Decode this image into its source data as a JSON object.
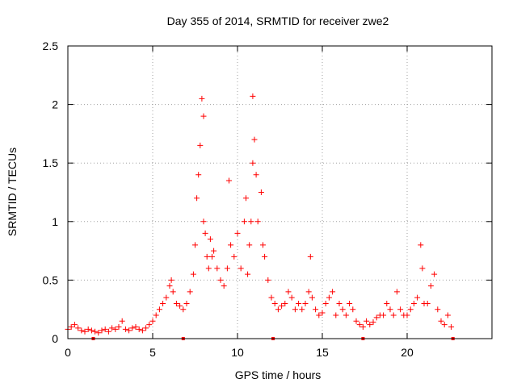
{
  "chart_data": {
    "type": "scatter",
    "title": "Day 355 of 2014, SRMTID for receiver zwe2",
    "xlabel": "GPS time / hours",
    "ylabel": "SRMTID / TECUs",
    "xlim": [
      0,
      25
    ],
    "ylim": [
      0,
      2.5
    ],
    "xticks": [
      0,
      5,
      10,
      15,
      20
    ],
    "yticks": [
      0,
      0.5,
      1,
      1.5,
      2,
      2.5
    ],
    "ytick_labels": [
      "0",
      "0.5",
      "1",
      "1.5",
      "2",
      "2.5"
    ],
    "grid": true,
    "marker": "+",
    "color": "#ff0000",
    "gap_markers_x": [
      1.5,
      6.8,
      12.1,
      17.4,
      22.7
    ],
    "series": [
      {
        "name": "zwe2",
        "x": [
          0.0,
          0.2,
          0.4,
          0.6,
          0.8,
          1.0,
          1.2,
          1.4,
          1.6,
          1.8,
          2.0,
          2.2,
          2.4,
          2.6,
          2.8,
          3.0,
          3.2,
          3.4,
          3.6,
          3.8,
          4.0,
          4.2,
          4.4,
          4.6,
          4.8,
          5.0,
          5.2,
          5.4,
          5.6,
          5.8,
          6.0,
          6.1,
          6.2,
          6.4,
          6.6,
          6.8,
          7.0,
          7.2,
          7.4,
          7.5,
          7.6,
          7.7,
          7.8,
          7.9,
          8.0,
          8.0,
          8.1,
          8.2,
          8.3,
          8.4,
          8.5,
          8.6,
          8.8,
          9.0,
          9.2,
          9.4,
          9.5,
          9.6,
          9.8,
          10.0,
          10.2,
          10.4,
          10.5,
          10.6,
          10.7,
          10.8,
          10.9,
          10.9,
          11.0,
          11.1,
          11.2,
          11.4,
          11.5,
          11.6,
          11.8,
          12.0,
          12.2,
          12.4,
          12.6,
          12.8,
          13.0,
          13.2,
          13.4,
          13.6,
          13.8,
          14.0,
          14.2,
          14.3,
          14.4,
          14.6,
          14.8,
          15.0,
          15.2,
          15.4,
          15.6,
          15.8,
          16.0,
          16.2,
          16.4,
          16.6,
          16.8,
          17.0,
          17.2,
          17.4,
          17.6,
          17.8,
          18.0,
          18.2,
          18.4,
          18.6,
          18.8,
          19.0,
          19.2,
          19.4,
          19.6,
          19.8,
          20.0,
          20.2,
          20.4,
          20.6,
          20.8,
          20.9,
          21.0,
          21.2,
          21.4,
          21.6,
          21.8,
          22.0,
          22.2,
          22.4,
          22.6
        ],
        "y": [
          0.08,
          0.1,
          0.12,
          0.09,
          0.07,
          0.06,
          0.08,
          0.07,
          0.06,
          0.05,
          0.07,
          0.08,
          0.06,
          0.09,
          0.08,
          0.1,
          0.15,
          0.08,
          0.07,
          0.09,
          0.1,
          0.08,
          0.07,
          0.09,
          0.12,
          0.15,
          0.2,
          0.25,
          0.3,
          0.35,
          0.45,
          0.5,
          0.4,
          0.3,
          0.28,
          0.25,
          0.3,
          0.4,
          0.55,
          0.8,
          1.2,
          1.4,
          1.65,
          2.05,
          1.9,
          1.0,
          0.9,
          0.7,
          0.6,
          0.85,
          0.7,
          0.75,
          0.6,
          0.5,
          0.45,
          0.6,
          1.35,
          0.8,
          0.7,
          0.9,
          0.6,
          1.0,
          1.2,
          0.55,
          0.8,
          1.0,
          2.07,
          1.5,
          1.7,
          1.4,
          1.0,
          1.25,
          0.8,
          0.7,
          0.5,
          0.35,
          0.3,
          0.25,
          0.28,
          0.3,
          0.4,
          0.35,
          0.25,
          0.3,
          0.25,
          0.3,
          0.4,
          0.7,
          0.35,
          0.25,
          0.2,
          0.22,
          0.3,
          0.35,
          0.4,
          0.2,
          0.3,
          0.25,
          0.2,
          0.3,
          0.25,
          0.15,
          0.12,
          0.1,
          0.15,
          0.12,
          0.14,
          0.18,
          0.2,
          0.2,
          0.3,
          0.25,
          0.2,
          0.4,
          0.25,
          0.2,
          0.2,
          0.25,
          0.3,
          0.35,
          0.8,
          0.6,
          0.3,
          0.3,
          0.45,
          0.55,
          0.25,
          0.15,
          0.12,
          0.2,
          0.1
        ]
      }
    ]
  }
}
